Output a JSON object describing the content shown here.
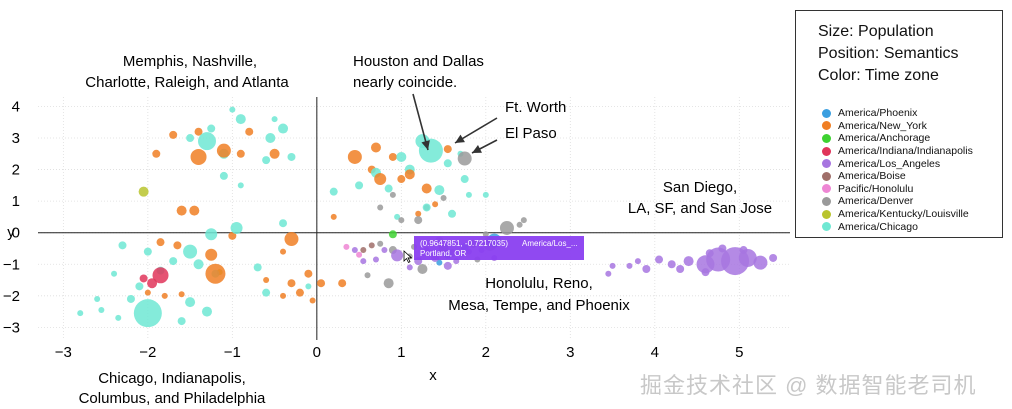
{
  "chart_data": {
    "type": "scatter",
    "xlabel": "x",
    "ylabel": "y",
    "xlim": [
      -3.3,
      5.6
    ],
    "ylim": [
      -3.4,
      4.3
    ],
    "xticks": [
      -3,
      -2,
      -1,
      0,
      1,
      2,
      3,
      4,
      5
    ],
    "yticks": [
      -3,
      -2,
      -1,
      0,
      1,
      2,
      3,
      4
    ],
    "grid": true,
    "legend": {
      "position": "top-right",
      "header": [
        "Size: Population",
        "Position: Semantics",
        "Color: Time zone"
      ],
      "entries": [
        {
          "name": "America/Phoenix",
          "color": "#3b9fe0"
        },
        {
          "name": "America/New_York",
          "color": "#f07f24"
        },
        {
          "name": "America/Anchorage",
          "color": "#3ed231"
        },
        {
          "name": "America/Indiana/Indianapolis",
          "color": "#e0355a"
        },
        {
          "name": "America/Los_Angeles",
          "color": "#a775e0"
        },
        {
          "name": "America/Boise",
          "color": "#a06f6a"
        },
        {
          "name": "Pacific/Honolulu",
          "color": "#ee86d4"
        },
        {
          "name": "America/Denver",
          "color": "#9a9a9a"
        },
        {
          "name": "America/Kentucky/Louisville",
          "color": "#b9c42e"
        },
        {
          "name": "America/Chicago",
          "color": "#6fe8d3"
        }
      ]
    },
    "annotations": [
      {
        "text": [
          "Memphis, Nashville,",
          "Charlotte, Raleigh, and Atlanta"
        ]
      },
      {
        "text": [
          "Houston and Dallas",
          "nearly coincide."
        ]
      },
      {
        "text": [
          "Ft. Worth"
        ]
      },
      {
        "text": [
          "El Paso"
        ]
      },
      {
        "text": [
          "San Diego,",
          "LA, SF, and San Jose"
        ]
      },
      {
        "text": [
          "Honolulu, Reno,",
          "Mesa, Tempe, and Phoenix"
        ]
      },
      {
        "text": [
          "Chicago, Indianapolis,",
          "Columbus, and Philadelphia"
        ]
      }
    ],
    "tooltip": {
      "coords": "(0.9647851, -0.7217035)",
      "zone": "America/Los_...",
      "city": "Portland, OR",
      "x": 0.9647851,
      "y": -0.7217035
    },
    "series": [
      {
        "name": "America/Chicago",
        "color": "#6fe8d3",
        "points": [
          [
            -2.0,
            -2.55,
            14
          ],
          [
            1.35,
            2.6,
            12
          ],
          [
            -1.25,
            3.3,
            4
          ],
          [
            -0.55,
            3.0,
            5
          ],
          [
            -0.9,
            3.6,
            5
          ],
          [
            -1.0,
            3.9,
            3
          ],
          [
            -1.1,
            2.5,
            5
          ],
          [
            -1.5,
            3.0,
            4
          ],
          [
            -1.3,
            2.9,
            9
          ],
          [
            -0.6,
            2.3,
            4
          ],
          [
            -0.4,
            3.3,
            5
          ],
          [
            -0.3,
            2.4,
            4
          ],
          [
            -1.1,
            1.8,
            4
          ],
          [
            -0.9,
            1.5,
            3
          ],
          [
            -1.5,
            -0.6,
            7
          ],
          [
            -1.4,
            -1.0,
            5
          ],
          [
            -1.7,
            -0.9,
            4
          ],
          [
            -1.25,
            -0.05,
            6
          ],
          [
            -0.95,
            0.15,
            6
          ],
          [
            -2.3,
            -0.4,
            4
          ],
          [
            -2.0,
            -0.6,
            4
          ],
          [
            -2.4,
            -1.3,
            3
          ],
          [
            -2.6,
            -2.1,
            3
          ],
          [
            -2.2,
            -2.1,
            4
          ],
          [
            -1.5,
            -2.2,
            5
          ],
          [
            -1.3,
            -2.5,
            5
          ],
          [
            -1.6,
            -2.8,
            4
          ],
          [
            -2.8,
            -2.55,
            3
          ],
          [
            -2.55,
            -2.45,
            3
          ],
          [
            -1.2,
            -1.3,
            4
          ],
          [
            -0.7,
            -1.1,
            4
          ],
          [
            -0.6,
            -1.9,
            4
          ],
          [
            -0.1,
            -1.7,
            3
          ],
          [
            -1.85,
            -1.2,
            4
          ],
          [
            -2.1,
            -1.7,
            4
          ],
          [
            -2.35,
            -2.7,
            3
          ],
          [
            0.2,
            1.3,
            4
          ],
          [
            0.5,
            1.5,
            4
          ],
          [
            0.7,
            1.9,
            5
          ],
          [
            0.85,
            1.4,
            4
          ],
          [
            1.1,
            2.0,
            5
          ],
          [
            1.0,
            2.4,
            5
          ],
          [
            1.25,
            2.9,
            7
          ],
          [
            1.55,
            2.2,
            4
          ],
          [
            1.7,
            2.5,
            3
          ],
          [
            1.45,
            1.35,
            5
          ],
          [
            1.75,
            1.7,
            4
          ],
          [
            1.3,
            0.8,
            4
          ],
          [
            1.6,
            0.6,
            4
          ],
          [
            0.95,
            0.5,
            3
          ],
          [
            2.0,
            1.2,
            3
          ],
          [
            -0.4,
            0.3,
            4
          ],
          [
            -0.5,
            3.6,
            3
          ],
          [
            1.8,
            1.2,
            3
          ]
        ]
      },
      {
        "name": "America/New_York",
        "color": "#f07f24",
        "points": [
          [
            -1.2,
            -1.3,
            10
          ],
          [
            -1.1,
            2.6,
            7
          ],
          [
            -1.4,
            2.4,
            8
          ],
          [
            -0.5,
            2.5,
            5
          ],
          [
            -1.7,
            3.1,
            4
          ],
          [
            -1.4,
            3.2,
            4
          ],
          [
            -0.9,
            2.5,
            4
          ],
          [
            -1.9,
            2.5,
            4
          ],
          [
            -0.8,
            3.2,
            4
          ],
          [
            -1.25,
            -0.7,
            6
          ],
          [
            -1.45,
            0.7,
            5
          ],
          [
            -1.6,
            0.7,
            5
          ],
          [
            -1.0,
            -0.1,
            4
          ],
          [
            -0.3,
            -0.2,
            7
          ],
          [
            -1.65,
            -0.4,
            4
          ],
          [
            -1.85,
            -0.3,
            4
          ],
          [
            -0.1,
            -1.3,
            4
          ],
          [
            -0.3,
            -1.6,
            4
          ],
          [
            0.05,
            -1.6,
            4
          ],
          [
            -0.2,
            -1.9,
            4
          ],
          [
            -0.05,
            -2.15,
            3
          ],
          [
            -0.4,
            -2.0,
            3
          ],
          [
            -1.8,
            -2.0,
            3
          ],
          [
            -2.0,
            -1.9,
            3
          ],
          [
            -1.6,
            -1.95,
            3
          ],
          [
            0.3,
            -1.6,
            4
          ],
          [
            0.45,
            2.4,
            7
          ],
          [
            0.7,
            2.7,
            5
          ],
          [
            0.9,
            2.4,
            4
          ],
          [
            0.75,
            1.7,
            6
          ],
          [
            1.1,
            1.85,
            5
          ],
          [
            1.0,
            1.7,
            4
          ],
          [
            1.3,
            1.4,
            5
          ],
          [
            1.55,
            2.65,
            4
          ],
          [
            0.65,
            2.0,
            4
          ],
          [
            0.2,
            0.5,
            3
          ],
          [
            1.4,
            0.9,
            3
          ],
          [
            1.2,
            0.6,
            3
          ],
          [
            -0.4,
            -0.6,
            3
          ],
          [
            -0.6,
            -1.5,
            3
          ]
        ]
      },
      {
        "name": "America/Los_Angeles",
        "color": "#a775e0",
        "points": [
          [
            4.95,
            -0.9,
            14
          ],
          [
            4.75,
            -0.85,
            12
          ],
          [
            4.6,
            -1.0,
            9
          ],
          [
            5.1,
            -0.8,
            9
          ],
          [
            5.25,
            -0.95,
            7
          ],
          [
            5.4,
            -0.8,
            4
          ],
          [
            4.4,
            -0.9,
            5
          ],
          [
            4.2,
            -1.0,
            4
          ],
          [
            4.05,
            -0.85,
            4
          ],
          [
            3.9,
            -1.15,
            4
          ],
          [
            4.3,
            -1.15,
            4
          ],
          [
            4.6,
            -1.25,
            4
          ],
          [
            3.7,
            -1.05,
            3
          ],
          [
            3.5,
            -1.05,
            3
          ],
          [
            3.45,
            -1.3,
            3
          ],
          [
            3.8,
            -0.9,
            3
          ],
          [
            4.8,
            -0.5,
            4
          ],
          [
            5.05,
            -0.55,
            4
          ],
          [
            4.65,
            -0.65,
            4
          ],
          [
            0.95,
            -0.72,
            6
          ],
          [
            1.4,
            -0.8,
            4
          ],
          [
            1.2,
            -0.9,
            4
          ],
          [
            1.55,
            -1.05,
            4
          ],
          [
            0.8,
            -0.55,
            3
          ],
          [
            1.8,
            -0.6,
            3
          ],
          [
            1.65,
            -0.9,
            3
          ],
          [
            0.55,
            -0.9,
            3
          ],
          [
            1.1,
            -1.1,
            3
          ],
          [
            0.45,
            -0.55,
            3
          ],
          [
            2.1,
            -0.8,
            3
          ],
          [
            1.95,
            -0.55,
            3
          ],
          [
            0.7,
            -0.85,
            3
          ],
          [
            1.3,
            -0.55,
            3
          ]
        ]
      },
      {
        "name": "America/Denver",
        "color": "#9a9a9a",
        "points": [
          [
            1.75,
            2.35,
            7
          ],
          [
            2.25,
            0.15,
            7
          ],
          [
            2.05,
            -0.35,
            7
          ],
          [
            1.5,
            -0.5,
            5
          ],
          [
            1.25,
            -1.15,
            5
          ],
          [
            0.85,
            -1.6,
            5
          ],
          [
            0.9,
            -0.55,
            4
          ],
          [
            1.2,
            0.4,
            4
          ],
          [
            1.0,
            0.4,
            3
          ],
          [
            0.75,
            0.8,
            3
          ],
          [
            1.45,
            -0.25,
            4
          ],
          [
            1.6,
            -0.65,
            4
          ],
          [
            1.85,
            -0.35,
            4
          ],
          [
            2.0,
            -0.05,
            3
          ],
          [
            2.4,
            0.25,
            3
          ],
          [
            1.15,
            -0.45,
            3
          ],
          [
            0.9,
            1.2,
            3
          ],
          [
            1.5,
            1.1,
            3
          ],
          [
            1.1,
            -0.75,
            3
          ],
          [
            0.6,
            -1.35,
            3
          ],
          [
            1.9,
            -0.85,
            3
          ],
          [
            2.45,
            0.4,
            3
          ],
          [
            0.75,
            -0.35,
            3
          ],
          [
            1.3,
            0.8,
            3
          ]
        ]
      },
      {
        "name": "America/Phoenix",
        "color": "#3b9fe0",
        "points": [
          [
            2.1,
            -0.25,
            7
          ],
          [
            1.55,
            -0.7,
            4
          ],
          [
            1.75,
            -0.45,
            4
          ],
          [
            1.45,
            -0.95,
            3
          ]
        ]
      },
      {
        "name": "America/Indiana/Indianapolis",
        "color": "#e0355a",
        "points": [
          [
            -1.85,
            -1.35,
            8
          ],
          [
            -1.95,
            -1.6,
            5
          ],
          [
            -2.05,
            -1.45,
            4
          ]
        ]
      },
      {
        "name": "America/Kentucky/Louisville",
        "color": "#b9c42e",
        "points": [
          [
            -2.05,
            1.3,
            5
          ],
          [
            -1.15,
            -1.25,
            3
          ]
        ]
      },
      {
        "name": "America/Anchorage",
        "color": "#3ed231",
        "points": [
          [
            0.9,
            -0.05,
            4
          ]
        ]
      },
      {
        "name": "America/Boise",
        "color": "#a06f6a",
        "points": [
          [
            0.55,
            -0.55,
            3
          ],
          [
            0.65,
            -0.4,
            3
          ]
        ]
      },
      {
        "name": "Pacific/Honolulu",
        "color": "#ee86d4",
        "points": [
          [
            0.5,
            -0.7,
            3
          ],
          [
            0.35,
            -0.45,
            3
          ]
        ]
      }
    ]
  }
}
